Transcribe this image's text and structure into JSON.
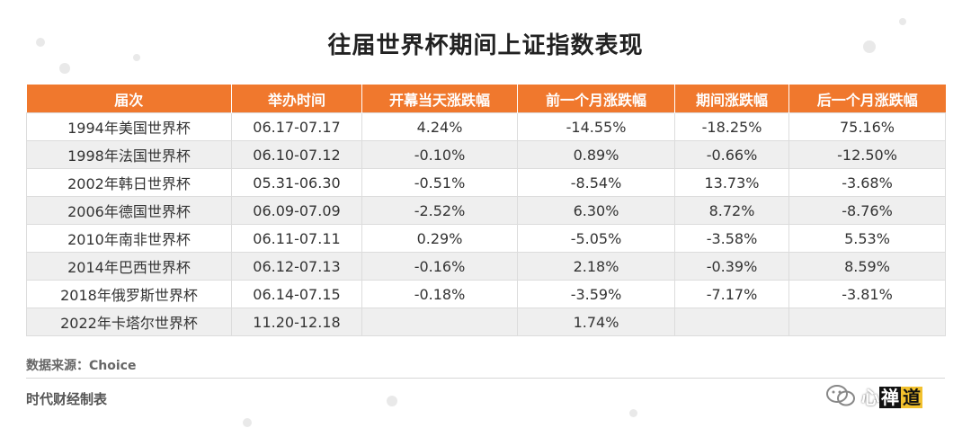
{
  "title": "往届世界杯期间上证指数表现",
  "table": {
    "headers": [
      "届次",
      "举办时间",
      "开幕当天涨跌幅",
      "前一个月涨跌幅",
      "期间涨跌幅",
      "后一个月涨跌幅"
    ],
    "rows": [
      [
        "1994年美国世界杯",
        "06.17-07.17",
        "4.24%",
        "-14.55%",
        "-18.25%",
        "75.16%"
      ],
      [
        "1998年法国世界杯",
        "06.10-07.12",
        "-0.10%",
        "0.89%",
        "-0.66%",
        "-12.50%"
      ],
      [
        "2002年韩日世界杯",
        "05.31-06.30",
        "-0.51%",
        "-8.54%",
        "13.73%",
        "-3.68%"
      ],
      [
        "2006年德国世界杯",
        "06.09-07.09",
        "-2.52%",
        "6.30%",
        "8.72%",
        "-8.76%"
      ],
      [
        "2010年南非世界杯",
        "06.11-07.11",
        "0.29%",
        "-5.05%",
        "-3.58%",
        "5.53%"
      ],
      [
        "2014年巴西世界杯",
        "06.12-07.13",
        "-0.16%",
        "2.18%",
        "-0.39%",
        "8.59%"
      ],
      [
        "2018年俄罗斯世界杯",
        "06.14-07.15",
        "-0.18%",
        "-3.59%",
        "-7.17%",
        "-3.81%"
      ],
      [
        "2022年卡塔尔世界杯",
        "11.20-12.18",
        "",
        "1.74%",
        "",
        ""
      ]
    ]
  },
  "footer": {
    "source": "数据来源：Choice",
    "credit": "时代财经制表"
  },
  "watermark": {
    "text_plain": "心",
    "text_boxed": "禅",
    "text_end": "道"
  },
  "colors": {
    "header_bg": "#f0782d",
    "alt_row_bg": "#efefef"
  }
}
